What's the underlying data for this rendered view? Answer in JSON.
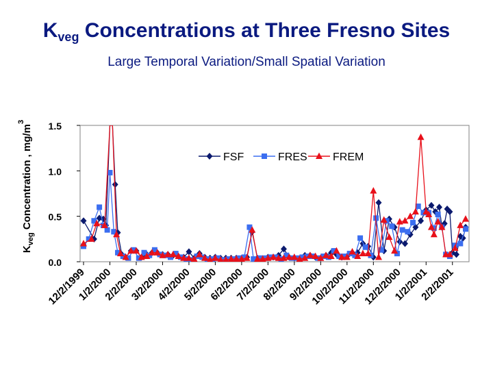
{
  "header": {
    "title_main": "K",
    "title_sub": "veg",
    "title_rest": " Concentrations at Three Fresno Sites",
    "subtitle": "Large Temporal Variation/Small Spatial Variation"
  },
  "chart_data": {
    "type": "line",
    "title": "Kveg Concentrations at Three Fresno Sites",
    "subtitle": "Large Temporal Variation/Small Spatial Variation",
    "ylabel_prefix": "K",
    "ylabel_sub": "veg",
    "ylabel_rest": " Concentration , mg/m",
    "ylabel_sup": "3",
    "xlabel": "",
    "ylim": [
      0.0,
      1.5
    ],
    "yticks": [
      "0.0",
      "0.5",
      "1.0",
      "1.5"
    ],
    "ytick_values": [
      0.0,
      0.5,
      1.0,
      1.5
    ],
    "xlim": [
      0,
      14.5
    ],
    "xticks": [
      "12/2/1999",
      "1/2/2000",
      "2/2/2000",
      "3/2/2000",
      "4/2/2000",
      "5/2/2000",
      "6/2/2000",
      "7/2/2000",
      "8/2/2000",
      "9/2/2000",
      "10/2/2000",
      "11/2/2000",
      "12/2/2000",
      "1/2/2001",
      "2/2/2001"
    ],
    "legend_position": "top-right",
    "grid": false,
    "series": [
      {
        "name": "FSF",
        "color": "#0b1a6e",
        "marker": "diamond",
        "x": [
          0.0,
          0.4,
          0.6,
          0.75,
          0.85,
          1.0,
          1.1,
          1.2,
          1.3,
          1.45,
          1.6,
          1.8,
          2.0,
          2.2,
          2.4,
          2.6,
          2.8,
          3.0,
          3.2,
          3.4,
          3.6,
          3.8,
          4.0,
          4.2,
          4.4,
          4.6,
          4.8,
          5.0,
          5.2,
          5.4,
          5.6,
          5.8,
          6.0,
          6.2,
          6.4,
          6.6,
          6.8,
          7.0,
          7.2,
          7.4,
          7.6,
          7.8,
          8.0,
          8.2,
          8.4,
          8.6,
          8.8,
          9.0,
          9.2,
          9.4,
          9.6,
          9.8,
          10.0,
          10.2,
          10.4,
          10.6,
          10.8,
          11.0,
          11.2,
          11.4,
          11.6,
          11.8,
          12.0,
          12.2,
          12.4,
          12.6,
          12.8,
          13.0,
          13.2,
          13.35,
          13.5,
          13.6,
          13.7,
          13.8,
          13.9,
          14.0,
          14.15,
          14.3,
          14.4,
          14.5
        ],
        "y": [
          0.45,
          0.25,
          0.48,
          0.47,
          0.4,
          1.5,
          1.5,
          0.85,
          0.32,
          0.08,
          0.05,
          0.12,
          0.12,
          0.05,
          0.08,
          0.1,
          0.1,
          0.08,
          0.08,
          0.07,
          0.06,
          0.05,
          0.11,
          0.04,
          0.09,
          0.05,
          0.04,
          0.05,
          0.04,
          0.04,
          0.04,
          0.04,
          0.04,
          0.05,
          0.33,
          0.04,
          0.03,
          0.05,
          0.05,
          0.07,
          0.14,
          0.05,
          0.04,
          0.03,
          0.07,
          0.07,
          0.05,
          0.04,
          0.07,
          0.1,
          0.08,
          0.05,
          0.06,
          0.1,
          0.1,
          0.2,
          0.17,
          0.05,
          0.65,
          0.12,
          0.47,
          0.38,
          0.22,
          0.2,
          0.3,
          0.38,
          0.45,
          0.57,
          0.62,
          0.55,
          0.6,
          0.38,
          0.42,
          0.58,
          0.55,
          0.1,
          0.08,
          0.28,
          0.26,
          0.38
        ]
      },
      {
        "name": "FRES",
        "color": "#3b6ef0",
        "marker": "square",
        "x": [
          0.0,
          0.2,
          0.4,
          0.6,
          0.75,
          0.9,
          1.0,
          1.15,
          1.3,
          1.5,
          1.7,
          1.9,
          2.1,
          2.3,
          2.5,
          2.7,
          2.9,
          3.1,
          3.3,
          3.5,
          3.7,
          3.9,
          4.1,
          4.3,
          4.5,
          4.7,
          4.9,
          5.1,
          5.3,
          5.5,
          5.7,
          5.9,
          6.1,
          6.3,
          6.45,
          6.7,
          6.9,
          7.1,
          7.3,
          7.5,
          7.7,
          7.9,
          8.1,
          8.3,
          8.5,
          8.7,
          8.9,
          9.1,
          9.3,
          9.5,
          9.7,
          9.9,
          10.1,
          10.3,
          10.5,
          10.7,
          10.9,
          11.1,
          11.3,
          11.5,
          11.7,
          11.9,
          12.1,
          12.3,
          12.5,
          12.7,
          12.9,
          13.1,
          13.3,
          13.45,
          13.6,
          13.75,
          13.9,
          14.1,
          14.3,
          14.5
        ],
        "y": [
          0.17,
          0.25,
          0.45,
          0.6,
          0.4,
          0.35,
          0.98,
          0.33,
          0.1,
          0.06,
          0.04,
          0.13,
          0.04,
          0.1,
          0.07,
          0.13,
          0.08,
          0.07,
          0.05,
          0.09,
          0.05,
          0.03,
          0.02,
          0.06,
          0.05,
          0.03,
          0.03,
          0.04,
          0.02,
          0.03,
          0.03,
          0.04,
          0.05,
          0.38,
          0.03,
          0.04,
          0.04,
          0.05,
          0.05,
          0.03,
          0.07,
          0.04,
          0.04,
          0.05,
          0.06,
          0.06,
          0.04,
          0.06,
          0.05,
          0.12,
          0.06,
          0.06,
          0.09,
          0.07,
          0.26,
          0.16,
          0.07,
          0.48,
          0.13,
          0.45,
          0.39,
          0.09,
          0.35,
          0.33,
          0.43,
          0.61,
          0.54,
          0.54,
          0.37,
          0.52,
          0.38,
          0.08,
          0.06,
          0.18,
          0.2,
          0.36
        ]
      },
      {
        "name": "FREM",
        "color": "#e8101a",
        "marker": "triangle",
        "x": [
          0.0,
          0.3,
          0.5,
          0.8,
          1.0,
          1.1,
          1.25,
          1.4,
          1.6,
          1.8,
          2.0,
          2.2,
          2.4,
          2.6,
          2.8,
          3.0,
          3.2,
          3.4,
          3.6,
          3.8,
          4.0,
          4.2,
          4.4,
          4.6,
          4.8,
          5.0,
          5.2,
          5.4,
          5.6,
          5.8,
          6.0,
          6.2,
          6.4,
          6.6,
          6.8,
          7.0,
          7.2,
          7.4,
          7.6,
          7.8,
          8.0,
          8.2,
          8.4,
          8.6,
          8.8,
          9.0,
          9.2,
          9.4,
          9.6,
          9.8,
          10.0,
          10.2,
          10.4,
          10.6,
          10.8,
          11.0,
          11.2,
          11.4,
          11.6,
          11.8,
          12.0,
          12.2,
          12.4,
          12.6,
          12.8,
          13.0,
          13.1,
          13.2,
          13.3,
          13.45,
          13.6,
          13.75,
          13.9,
          14.1,
          14.3,
          14.5
        ],
        "y": [
          0.2,
          0.25,
          0.42,
          0.4,
          1.5,
          1.5,
          0.3,
          0.09,
          0.05,
          0.12,
          0.12,
          0.05,
          0.06,
          0.1,
          0.1,
          0.07,
          0.08,
          0.08,
          0.06,
          0.04,
          0.04,
          0.03,
          0.08,
          0.04,
          0.02,
          0.04,
          0.02,
          0.02,
          0.03,
          0.03,
          0.03,
          0.04,
          0.35,
          0.03,
          0.03,
          0.04,
          0.05,
          0.04,
          0.04,
          0.05,
          0.05,
          0.03,
          0.04,
          0.07,
          0.06,
          0.04,
          0.07,
          0.06,
          0.12,
          0.05,
          0.05,
          0.11,
          0.06,
          0.09,
          0.09,
          0.78,
          0.05,
          0.46,
          0.27,
          0.12,
          0.44,
          0.45,
          0.5,
          0.55,
          1.37,
          0.55,
          0.52,
          0.38,
          0.3,
          0.44,
          0.38,
          0.08,
          0.08,
          0.15,
          0.4,
          0.47
        ]
      }
    ]
  }
}
